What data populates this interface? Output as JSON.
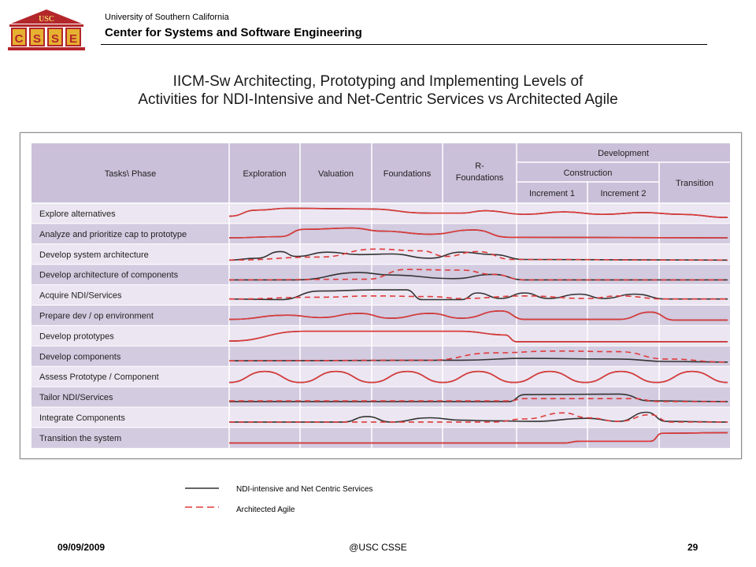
{
  "header": {
    "logo_text": "USC",
    "logo_letters": [
      "C",
      "S",
      "S",
      "E"
    ],
    "university": "University of Southern California",
    "center": "Center for Systems and Software Engineering"
  },
  "title": {
    "line1": "IICM-Sw Architecting, Prototyping and Implementing Levels of",
    "line2": "Activities for NDI-Intensive and Net-Centric Services vs Architected Agile"
  },
  "table": {
    "corner_header": "Tasks\\ Phase",
    "phases": [
      "Exploration",
      "Valuation",
      "Foundations",
      "R-\nFoundations"
    ],
    "development": "Development",
    "construction": "Construction",
    "increments": [
      "Increment 1",
      "Increment 2"
    ],
    "transition": "Transition",
    "tasks": [
      "Explore alternatives",
      "Analyze and prioritize cap to prototype",
      "Develop system architecture",
      "Develop architecture of components",
      "Acquire NDI/Services",
      "Prepare dev / op environment",
      "Develop prototypes",
      "Develop components",
      "Assess Prototype / Component",
      "Tailor NDI/Services",
      "Integrate Components",
      "Transition the system"
    ]
  },
  "legend": {
    "ndi_label": "NDI-intensive and Net Centric Services",
    "agile_label": "Architected Agile"
  },
  "colors": {
    "header_fill": "#cbc0d9",
    "row_dark": "#d3cbe0",
    "row_light": "#ebe6f1",
    "ndi_line": "#333333",
    "agile_line": "#e03a3a",
    "logo_red": "#b3262a",
    "logo_gold": "#e6b030"
  },
  "footer": {
    "date": "09/09/2009",
    "center": "@USC CSSE",
    "page": "29"
  }
}
